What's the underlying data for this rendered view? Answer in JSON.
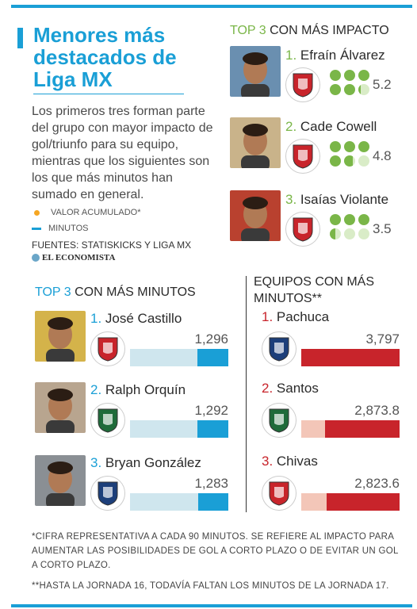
{
  "title": "Menores más destacados de Liga MX",
  "intro": "Los primeros tres forman parte del grupo con mayor impacto de gol/triunfo para su equipo, mientras que los siguientes son los que más minutos han sumado en general.",
  "legend": {
    "valor": "VALOR ACUMULADO*",
    "minutos": "MINUTOS"
  },
  "sources": "FUENTES: STATISKICKS Y LIGA MX",
  "brand": "EL ECONOMISTA",
  "colors": {
    "blue": "#1a9fd6",
    "green": "#7ab648",
    "red": "#c8242b",
    "lightblue": "#cfe6ee",
    "lightred": "#f3c6b8"
  },
  "chart_data": [
    {
      "type": "table",
      "title_hl": "TOP 3",
      "title_rest": "CON MÁS IMPACTO",
      "players": [
        {
          "rank": "1.",
          "name": "Efraín Álvarez",
          "team_icon": "xolos-crest-icon",
          "value": 5.2,
          "value_label": "5.2"
        },
        {
          "rank": "2.",
          "name": "Cade Cowell",
          "team_icon": "chivas-crest-icon",
          "value": 4.8,
          "value_label": "4.8"
        },
        {
          "rank": "3.",
          "name": "Isaías Violante",
          "team_icon": "toluca-crest-icon",
          "value": 3.5,
          "value_label": "3.5"
        }
      ]
    },
    {
      "type": "bar",
      "title_hl": "TOP 3",
      "title_rest": "CON MÁS MINUTOS",
      "categories": [
        "José Castillo",
        "Ralph Orquín",
        "Bryan González"
      ],
      "ranks": [
        "1.",
        "2.",
        "3."
      ],
      "team_icons": [
        "chivas-crest-icon",
        "juarez-crest-icon",
        "pachuca-crest-icon"
      ],
      "values": [
        1296,
        1292,
        1283
      ],
      "value_labels": [
        "1,296",
        "1,292",
        "1,283"
      ]
    },
    {
      "type": "bar",
      "title": "EQUIPOS CON MÁS MINUTOS**",
      "categories": [
        "Pachuca",
        "Santos",
        "Chivas"
      ],
      "ranks": [
        "1.",
        "2.",
        "3."
      ],
      "team_icons": [
        "pachuca-crest-icon",
        "santos-crest-icon",
        "chivas-crest-icon"
      ],
      "values": [
        3797,
        2873.8,
        2823.6
      ],
      "value_labels": [
        "3,797",
        "2,873.8",
        "2,823.6"
      ]
    }
  ],
  "footnotes": [
    "*CIFRA REPRESENTATIVA A CADA 90 MINUTOS. SE REFIERE AL IMPACTO PARA AUMENTAR LAS POSIBILIDADES DE GOL A CORTO PLAZO O DE EVITAR UN GOL A CORTO PLAZO.",
    "**HASTA LA JORNADA 16, TODAVÍA FALTAN LOS MINUTOS DE LA JORNADA 17."
  ]
}
